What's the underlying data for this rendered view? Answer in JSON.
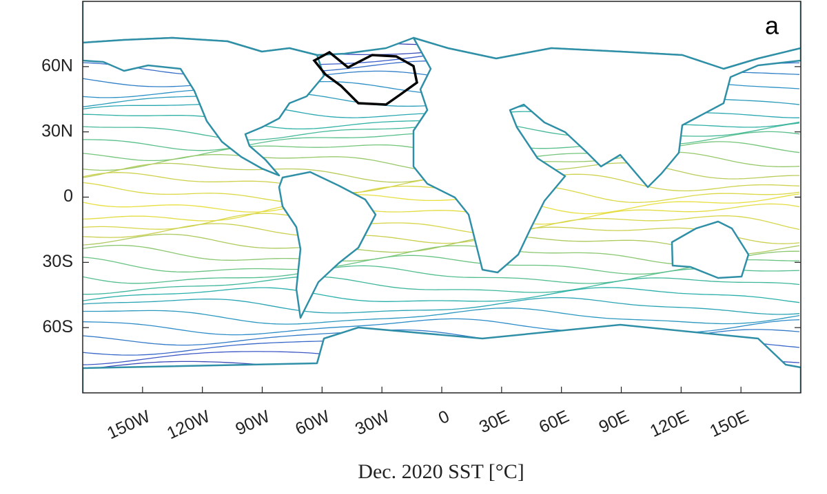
{
  "chart_data": {
    "type": "map",
    "panel_label": "a",
    "xlabel": "Dec. 2020 SST [°C]",
    "xlim": [
      -180,
      180
    ],
    "ylim": [
      -90,
      90
    ],
    "xticks": [
      {
        "value": -150,
        "label": "150W"
      },
      {
        "value": -120,
        "label": "120W"
      },
      {
        "value": -90,
        "label": "90W"
      },
      {
        "value": -60,
        "label": "60W"
      },
      {
        "value": -30,
        "label": "30W"
      },
      0,
      {
        "value": 30,
        "label": "30E"
      },
      {
        "value": 60,
        "label": "60E"
      },
      {
        "value": 90,
        "label": "90E"
      },
      {
        "value": 120,
        "label": "120E"
      },
      {
        "value": 150,
        "label": "150E"
      }
    ],
    "yticks": [
      {
        "value": 60,
        "label": "60N"
      },
      {
        "value": 30,
        "label": "30N"
      },
      0,
      {
        "value": -30,
        "label": "30S"
      },
      {
        "value": -60,
        "label": "60S"
      }
    ]
  }
}
